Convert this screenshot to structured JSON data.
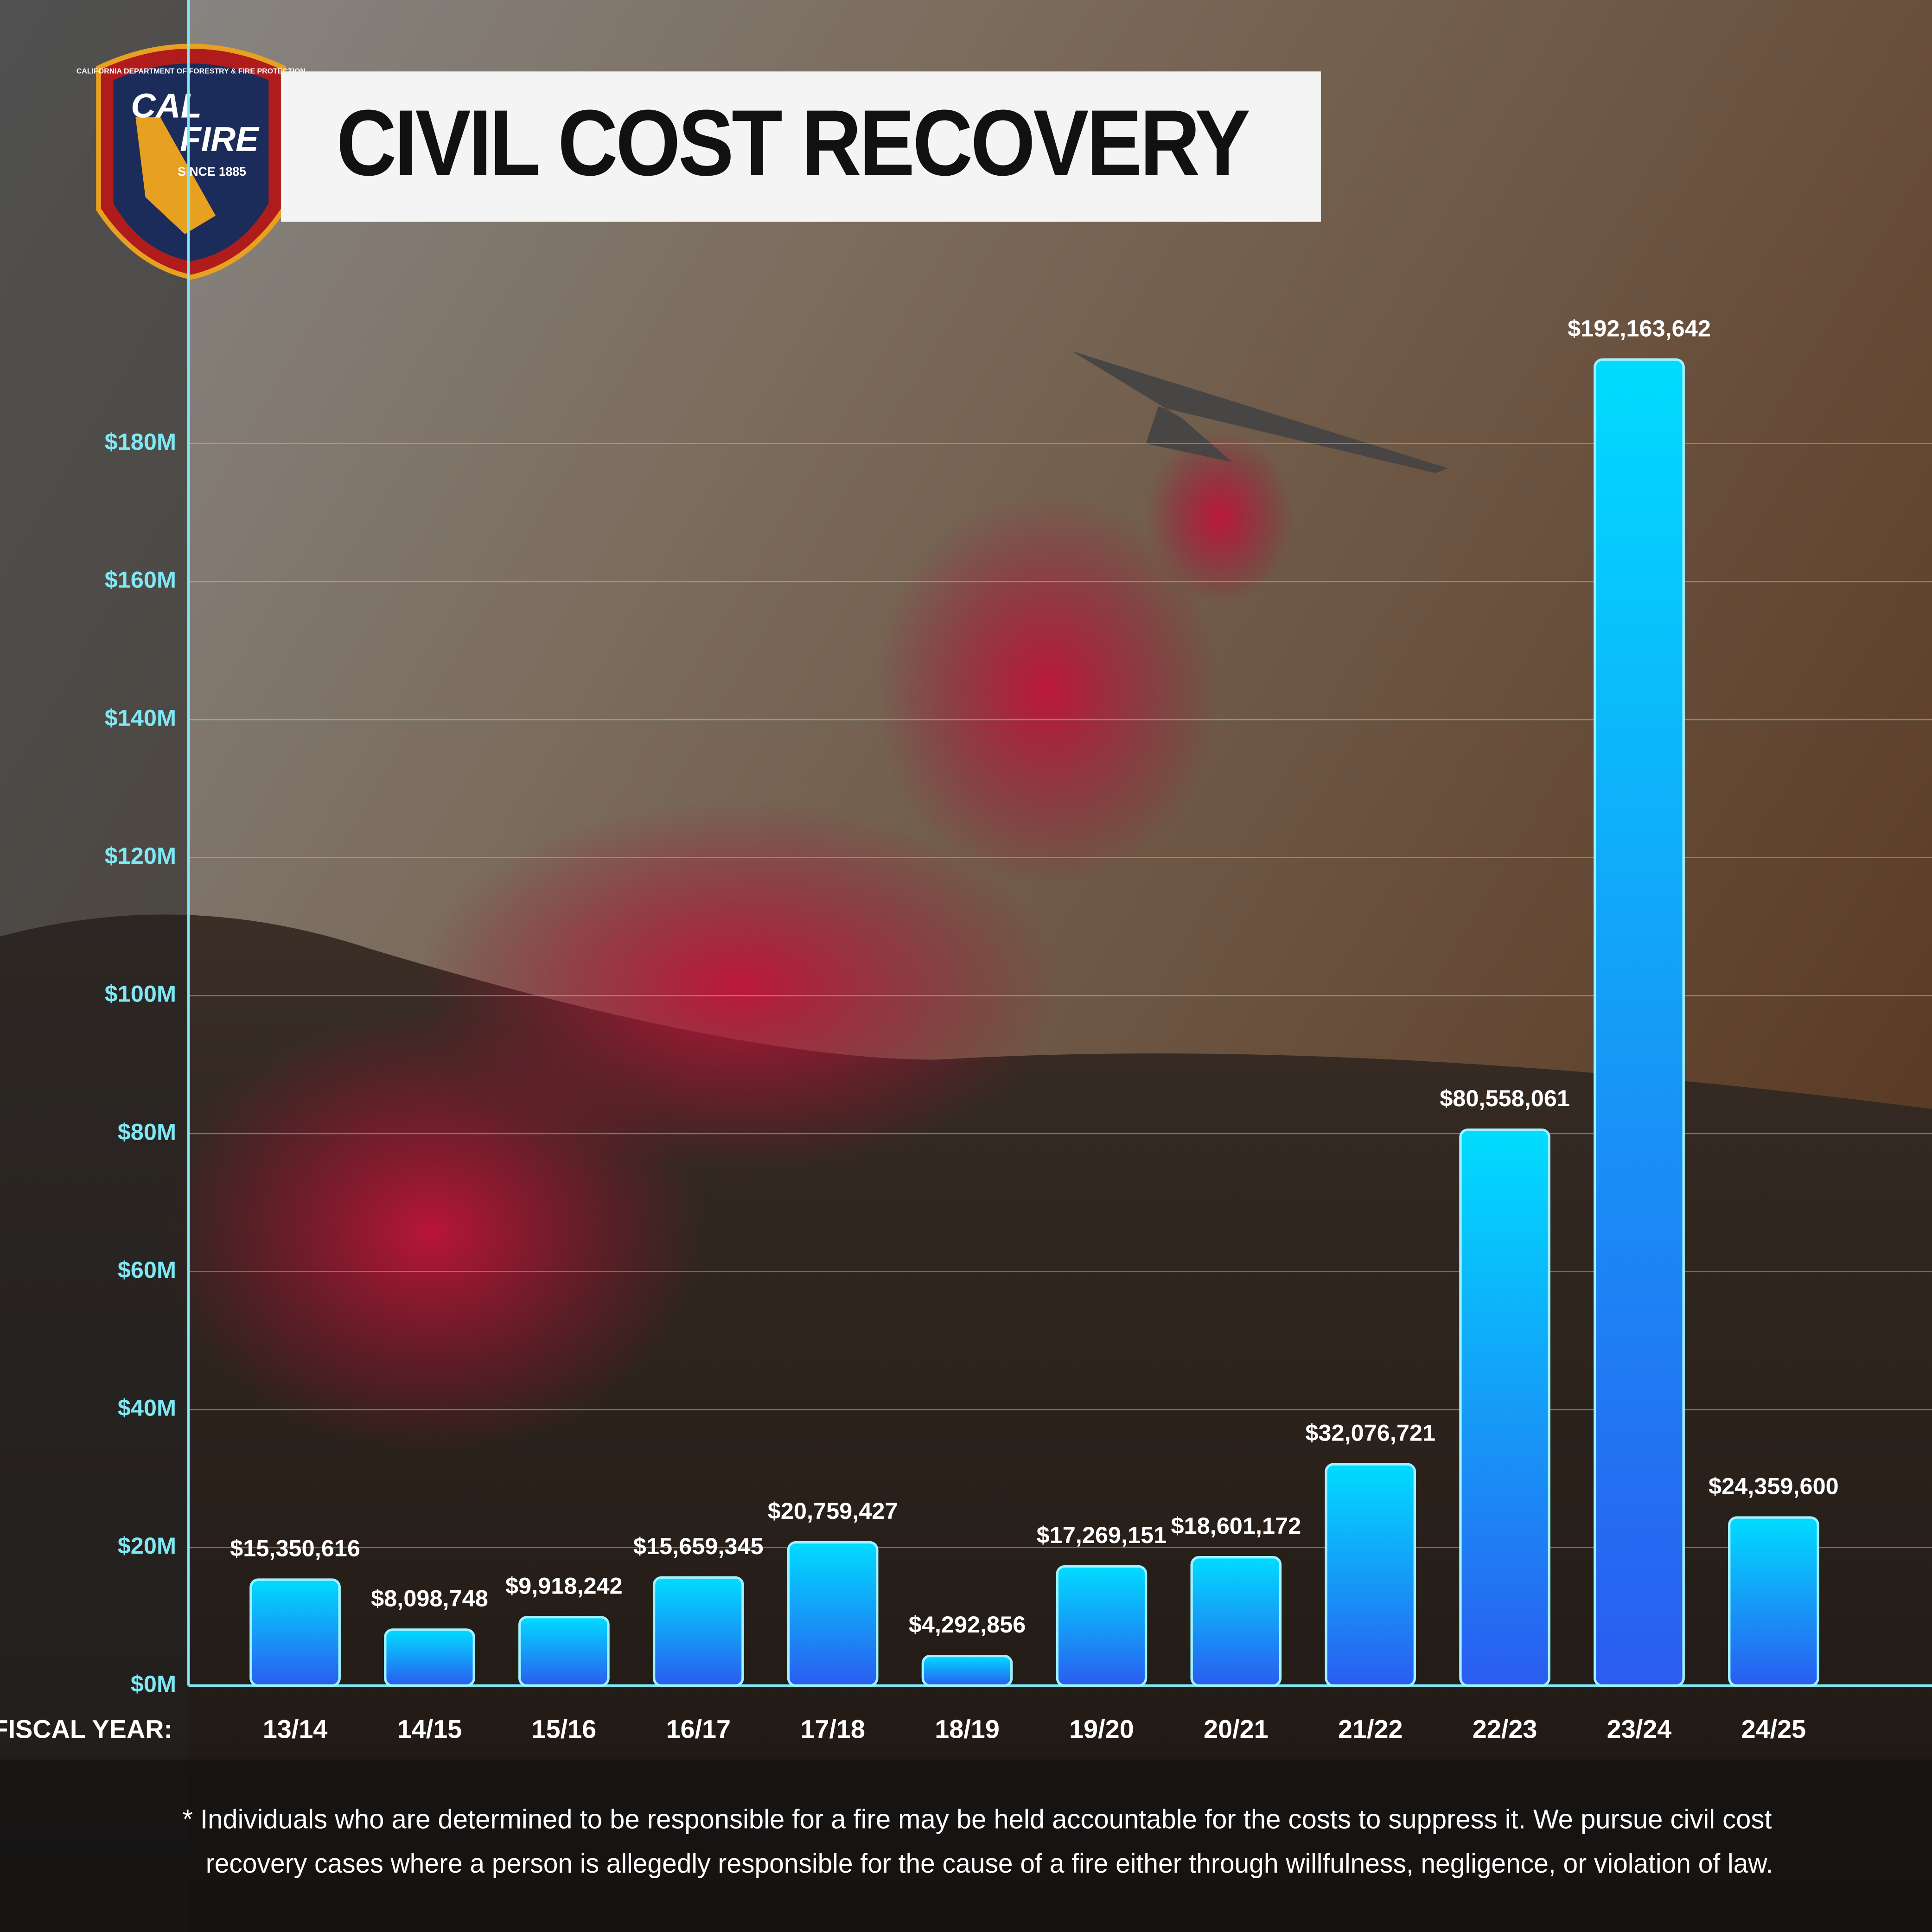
{
  "logo": {
    "arc_text": "CALIFORNIA DEPARTMENT OF FORESTRY & FIRE PROTECTION",
    "line1": "CAL",
    "line2": "FIRE",
    "since": "SINCE 1885"
  },
  "chart_data": {
    "type": "bar",
    "title": "CIVIL COST RECOVERY",
    "x_label": "FISCAL YEAR:",
    "categories": [
      "13/14",
      "14/15",
      "15/16",
      "16/17",
      "17/18",
      "18/19",
      "19/20",
      "20/21",
      "21/22",
      "22/23",
      "23/24",
      "24/25"
    ],
    "values": [
      15350616,
      8098748,
      9918242,
      15659345,
      20759427,
      4292856,
      17269151,
      18601172,
      32076721,
      80558061,
      192163642,
      24359600
    ],
    "value_labels": [
      "$15,350,616",
      "$8,098,748",
      "$9,918,242",
      "$15,659,345",
      "$20,759,427",
      "$4,292,856",
      "$17,269,151",
      "$18,601,172",
      "$32,076,721",
      "$80,558,061",
      "$192,163,642",
      "$24,359,600"
    ],
    "color_top": "#00dcff",
    "color_bottom": "#2a5cf0",
    "ylim": [
      0,
      240000000
    ],
    "yticks": [
      {
        "value": 0,
        "label": "$0M"
      },
      {
        "value": 20000000,
        "label": "$20M"
      },
      {
        "value": 40000000,
        "label": "$40M"
      },
      {
        "value": 60000000,
        "label": "$60M"
      },
      {
        "value": 80000000,
        "label": "$80M"
      },
      {
        "value": 100000000,
        "label": "$100M"
      },
      {
        "value": 120000000,
        "label": "$120M"
      },
      {
        "value": 140000000,
        "label": "$140M"
      },
      {
        "value": 160000000,
        "label": "$160M"
      },
      {
        "value": 180000000,
        "label": "$180M"
      }
    ],
    "grid": true
  },
  "footnote": [
    "* Individuals who are determined to be responsible for a fire may be held accountable for the costs to suppress it. We pursue civil cost",
    "recovery cases where a person is allegedly responsible for the cause of a fire either through willfulness, negligence, or violation of law."
  ]
}
